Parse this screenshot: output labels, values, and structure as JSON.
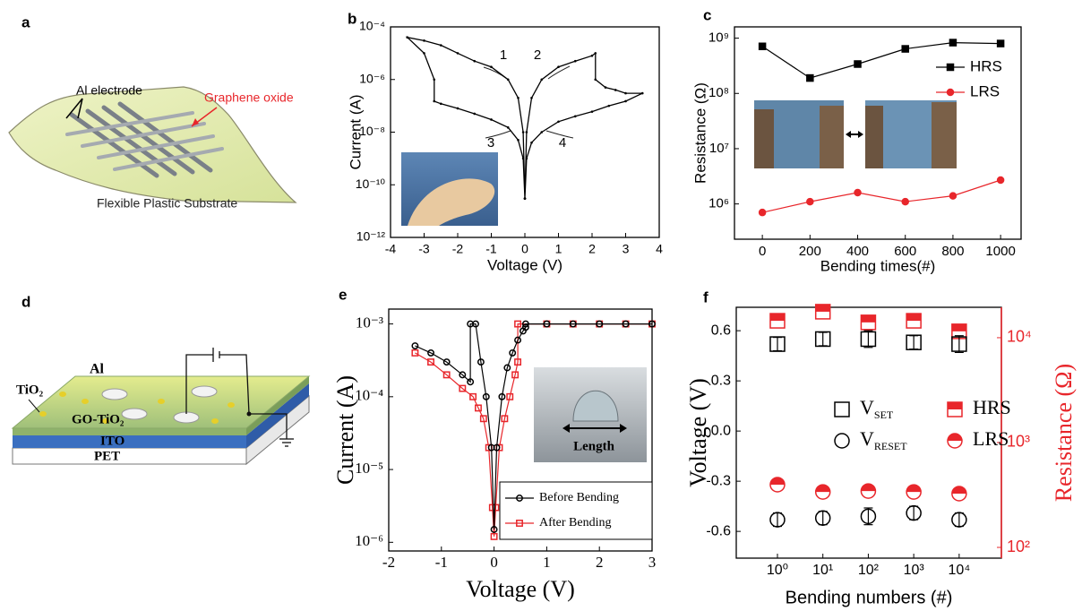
{
  "diagram_a": {
    "label": "a",
    "electrode": "Al electrode",
    "material": "Graphene oxide",
    "substrate": "Flexible Plastic Substrate"
  },
  "diagram_d": {
    "label": "d",
    "top_electrode": "Al",
    "nanoparticles": "TiO₂",
    "layer": "GO-TiO₂",
    "bottom_electrode": "ITO",
    "substrate": "PET"
  },
  "chart_data": [
    {
      "type": "line",
      "label": "b",
      "xlabel": "Voltage (V)",
      "ylabel": "Current (A)",
      "log_y": true,
      "xlim": [
        -4,
        4
      ],
      "xticks": [
        -4,
        -3,
        -2,
        -1,
        0,
        1,
        2,
        3,
        4
      ],
      "ylim": [
        1e-12,
        0.0001
      ],
      "yticks": [
        {
          "value": 1e-12,
          "label": "10⁻¹²"
        },
        {
          "value": 1e-10,
          "label": "10⁻¹⁰"
        },
        {
          "value": 1e-08,
          "label": "10⁻⁸"
        },
        {
          "value": 1e-06,
          "label": "10⁻⁶"
        },
        {
          "value": 0.0001,
          "label": "10⁻⁴"
        }
      ],
      "annotations": [
        "1",
        "2",
        "3",
        "4"
      ],
      "series": [
        {
          "color": "#000000",
          "marker": "dot",
          "x": [
            0,
            -0.05,
            -0.2,
            -0.5,
            -1,
            -1.5,
            -2,
            -2.5,
            -2.7,
            -2.7,
            -3,
            -3.5,
            -3,
            -2.5,
            -2,
            -1.5,
            -1,
            -0.5,
            -0.2,
            -0.05,
            0,
            0.05,
            0.2,
            0.5,
            1,
            1.5,
            2,
            2.1,
            2.1,
            2.4,
            2.7,
            3,
            3.5,
            3,
            2.5,
            2,
            1.5,
            1,
            0.5,
            0.2,
            0.05,
            0
          ],
          "values": [
            3e-11,
            1e-09,
            5e-09,
            1.5e-08,
            3e-08,
            5e-08,
            8e-08,
            1.2e-07,
            1.5e-07,
            1e-06,
            1e-05,
            4e-05,
            3e-05,
            2e-05,
            1e-05,
            5e-06,
            3e-06,
            1e-06,
            2e-07,
            1e-08,
            3e-11,
            1e-08,
            2e-07,
            1e-06,
            3e-06,
            5e-06,
            8e-06,
            1e-05,
            1e-06,
            5e-07,
            4e-07,
            3e-07,
            3e-07,
            1.5e-07,
            1e-07,
            6e-08,
            4e-08,
            2.5e-08,
            1e-08,
            4e-09,
            1e-09,
            3e-11
          ]
        }
      ]
    },
    {
      "type": "line",
      "label": "c",
      "xlabel": "Bending times(#)",
      "ylabel": "Resistance (Ω)",
      "log_y": true,
      "xlim": [
        -117,
        1086
      ],
      "xticks": [
        0,
        200,
        400,
        600,
        800,
        1000
      ],
      "ylim": [
        230000,
        1600000000
      ],
      "yticks": [
        {
          "value": 1000000,
          "label": "10⁶"
        },
        {
          "value": 10000000,
          "label": "10⁷"
        },
        {
          "value": 100000000,
          "label": "10⁸"
        },
        {
          "value": 1000000000,
          "label": "10⁹"
        }
      ],
      "legend": "upper right",
      "x": [
        0,
        200,
        400,
        600,
        800,
        1000
      ],
      "series": [
        {
          "name": "HRS",
          "color": "#000000",
          "marker": "square",
          "values": [
            710000000,
            190000000,
            340000000,
            640000000,
            830000000,
            800000000
          ]
        },
        {
          "name": "LRS",
          "color": "#e8262b",
          "marker": "circle",
          "values": [
            700000,
            1100000,
            1600000,
            1100000,
            1400000,
            2700000
          ]
        }
      ]
    },
    {
      "type": "line",
      "label": "e",
      "xlabel": "Voltage (V)",
      "ylabel": "Current (A)",
      "log_y": true,
      "xlim": [
        -2,
        3
      ],
      "xticks": [
        -2,
        -1,
        0,
        1,
        2,
        3
      ],
      "ylim": [
        7.6e-07,
        0.0016
      ],
      "yticks": [
        {
          "value": 1e-06,
          "label": "10⁻⁶"
        },
        {
          "value": 1e-05,
          "label": "10⁻⁵"
        },
        {
          "value": 0.0001,
          "label": "10⁻⁴"
        },
        {
          "value": 0.001,
          "label": "10⁻³"
        }
      ],
      "annotations": [
        "Length"
      ],
      "legend": "lower right",
      "series": [
        {
          "name": "Before Bending",
          "color": "#000000",
          "marker": "open-circle",
          "x": [
            -1.5,
            -1.2,
            -0.9,
            -0.6,
            -0.45,
            -0.45,
            -0.35,
            -0.25,
            -0.15,
            -0.05,
            0,
            0.05,
            0.15,
            0.25,
            0.35,
            0.45,
            0.55,
            0.6,
            0.6,
            1,
            1.5,
            2,
            2.5,
            3
          ],
          "values": [
            0.0005,
            0.0004,
            0.0003,
            0.0002,
            0.00016,
            0.001,
            0.001,
            0.0003,
            0.0001,
            2e-05,
            1.5e-06,
            2e-05,
            0.0001,
            0.00025,
            0.0004,
            0.0006,
            0.0008,
            0.0009,
            0.001,
            0.001,
            0.001,
            0.001,
            0.001,
            0.001
          ]
        },
        {
          "name": "After Bending",
          "color": "#e8262b",
          "marker": "open-square",
          "x": [
            -1.5,
            -1.2,
            -0.9,
            -0.6,
            -0.4,
            -0.3,
            -0.2,
            -0.1,
            -0.03,
            0,
            0.03,
            0.1,
            0.2,
            0.3,
            0.4,
            0.45,
            0.45,
            1,
            1.5,
            2,
            2.5,
            3
          ],
          "values": [
            0.0004,
            0.0003,
            0.0002,
            0.00013,
            0.0001,
            7e-05,
            5e-05,
            2e-05,
            3e-06,
            1.2e-06,
            3e-06,
            2e-05,
            5e-05,
            0.0001,
            0.0002,
            0.0003,
            0.001,
            0.001,
            0.001,
            0.001,
            0.001,
            0.001
          ]
        }
      ]
    },
    {
      "type": "scatter",
      "label": "f",
      "xlabel": "Bending numbers (#)",
      "ylabel": "Voltage (V)",
      "y2label": "Resistance (Ω)",
      "y2color": "#e8262b",
      "log_x": true,
      "log_y2": true,
      "xlim": [
        0.124,
        85000
      ],
      "xticks": [
        {
          "value": 1,
          "label": "10⁰"
        },
        {
          "value": 10,
          "label": "10¹"
        },
        {
          "value": 100,
          "label": "10²"
        },
        {
          "value": 1000,
          "label": "10³"
        },
        {
          "value": 10000,
          "label": "10⁴"
        }
      ],
      "ylim": [
        -0.76,
        0.74
      ],
      "yticks": [
        0.6,
        0.3,
        {
          "value": 0,
          "label": "0.0"
        },
        -0.3,
        -0.6
      ],
      "y2lim": [
        79,
        19500
      ],
      "y2ticks": [
        {
          "value": 100,
          "label": "10²"
        },
        {
          "value": 1000,
          "label": "10³"
        },
        {
          "value": 10000,
          "label": "10⁴"
        }
      ],
      "legend": "center right",
      "x": [
        1,
        10,
        100,
        1000,
        10000
      ],
      "series": [
        {
          "name": "VSET",
          "color": "#000000",
          "marker": "open-square",
          "values": [
            0.52,
            0.55,
            0.55,
            0.53,
            0.52
          ],
          "errors": [
            0.04,
            0.04,
            0.05,
            0.04,
            0.05
          ]
        },
        {
          "name": "VRESET",
          "color": "#000000",
          "marker": "open-circle",
          "values": [
            -0.53,
            -0.52,
            -0.51,
            -0.49,
            -0.53
          ],
          "errors": [
            0.04,
            0.04,
            0.05,
            0.04,
            0.04
          ]
        },
        {
          "name": "HRS",
          "color": "#e8262b",
          "marker": "half-square",
          "axis": "y2",
          "values": [
            14500,
            17700,
            14000,
            14500,
            11500
          ]
        },
        {
          "name": "LRS",
          "color": "#e8262b",
          "marker": "half-circle",
          "axis": "y2",
          "values": [
            397,
            338,
            345,
            338,
            326
          ]
        }
      ]
    }
  ]
}
